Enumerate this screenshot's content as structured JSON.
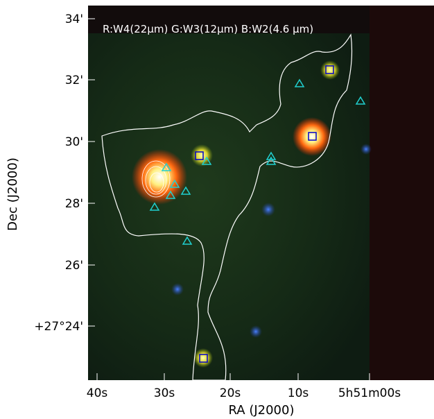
{
  "image": {
    "caption": "R:W4(22μm) G:W3(12μm) B:W2(4.6 μm)"
  },
  "axes": {
    "x_label": "RA (J2000)",
    "y_label": "Dec (J2000)",
    "x_ticks": [
      "40s",
      "30s",
      "20s",
      "10s",
      "5h51m00s"
    ],
    "y_ticks": [
      "34'",
      "32'",
      "30'",
      "28'",
      "26'",
      "+27°24'"
    ]
  }
}
